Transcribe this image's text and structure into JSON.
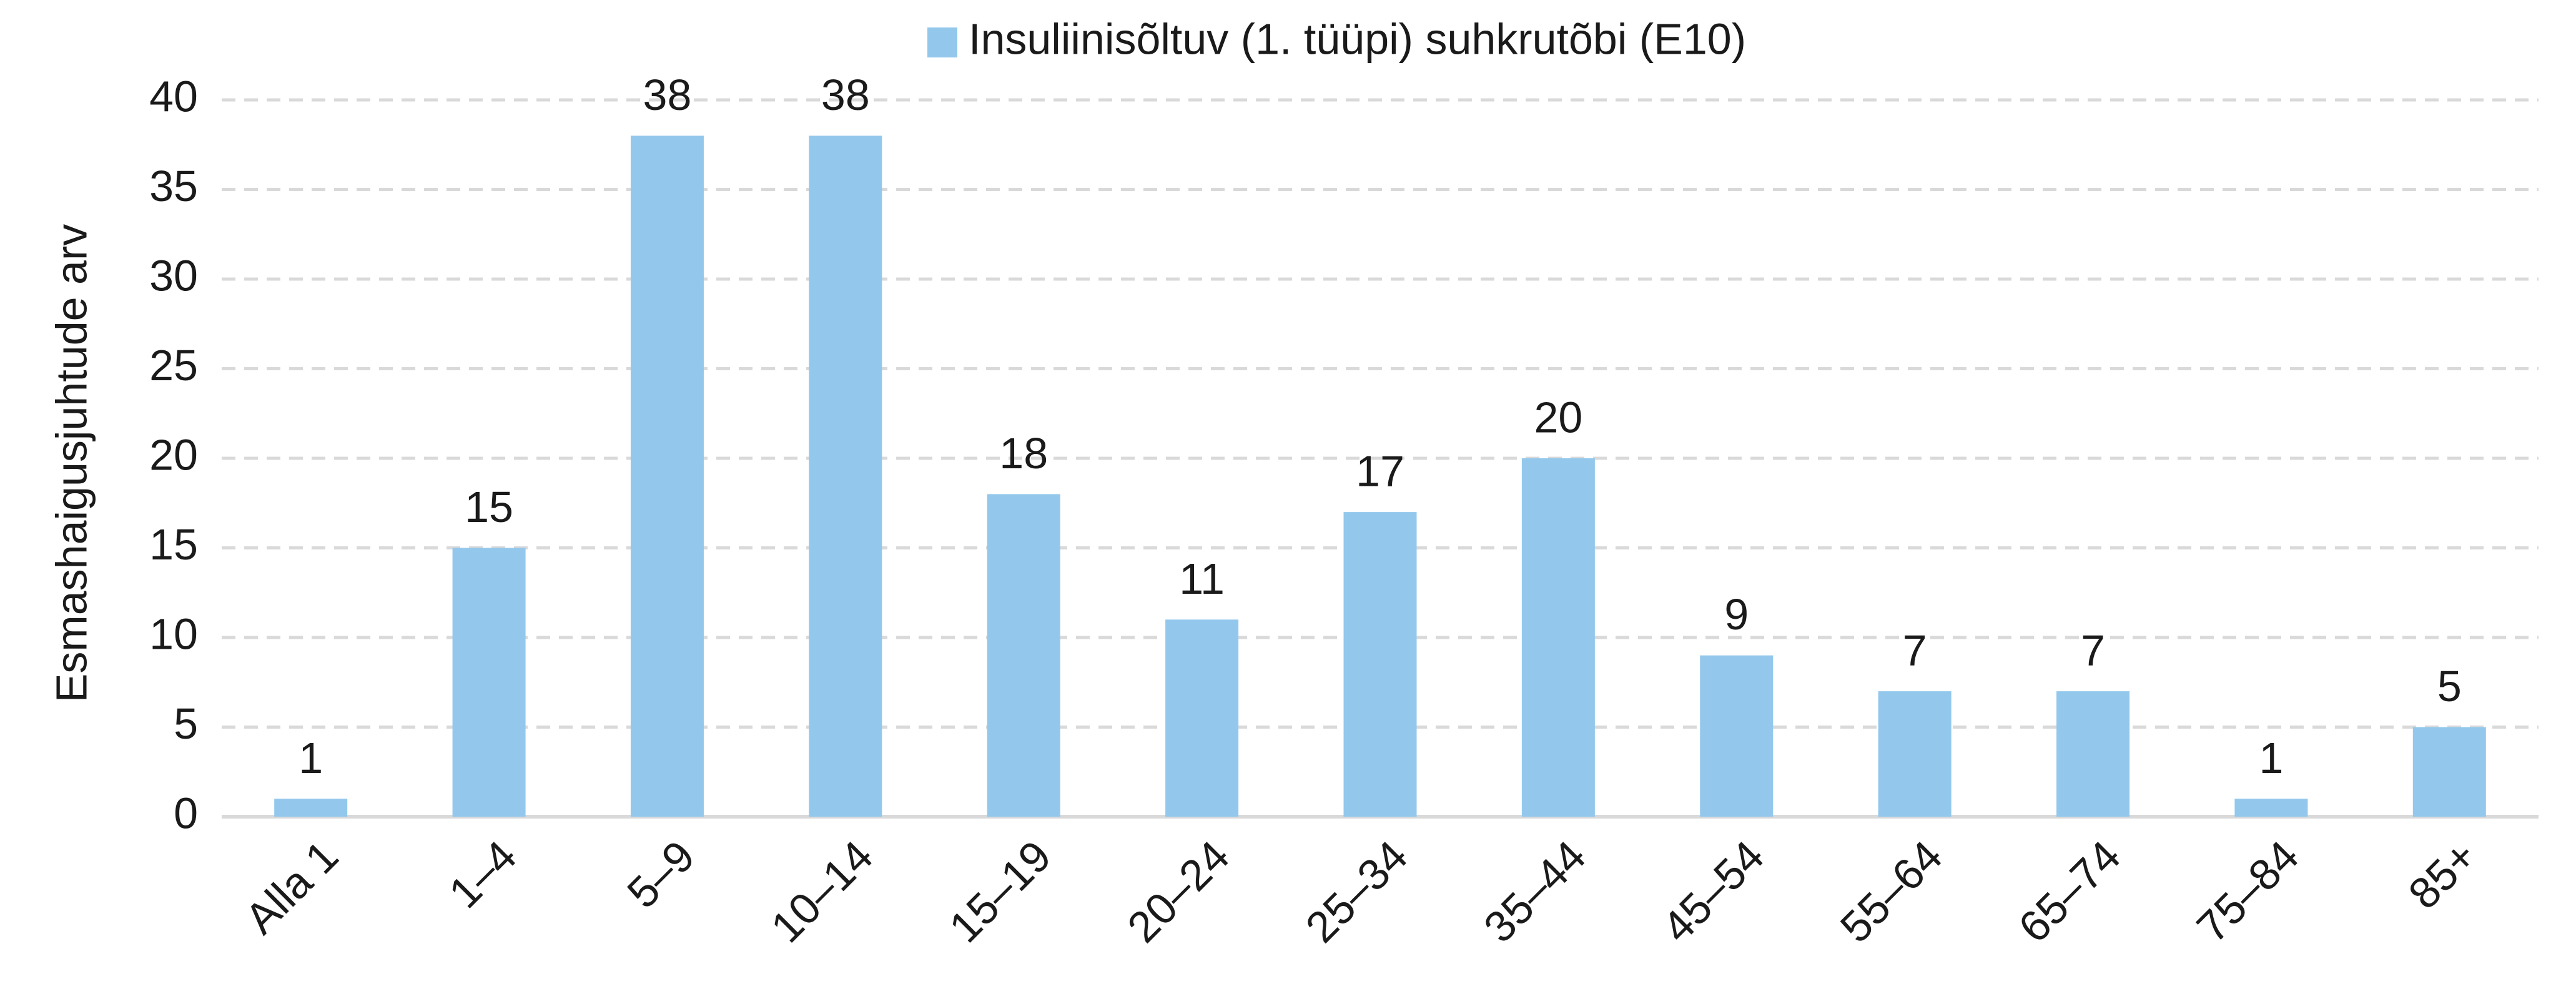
{
  "chart_data": {
    "type": "bar",
    "y_label": "Esmashaigusjuhtude arv",
    "categories": [
      "Alla 1",
      "1–4",
      "5–9",
      "10–14",
      "15–19",
      "20–24",
      "25–34",
      "35–44",
      "45–54",
      "55–64",
      "65–74",
      "75–84",
      "85+"
    ],
    "series": [
      {
        "name": "Insuliinisõltuv (1. tüüpi) suhkrutõbi (E10)",
        "color": "#93c8ec",
        "values": [
          1,
          15,
          38,
          38,
          18,
          11,
          17,
          20,
          9,
          7,
          7,
          1,
          5
        ]
      }
    ],
    "ylim": [
      0,
      40
    ],
    "yticks": [
      0,
      5,
      10,
      15,
      20,
      25,
      30,
      35,
      40
    ],
    "grid": true,
    "legend": "top"
  }
}
